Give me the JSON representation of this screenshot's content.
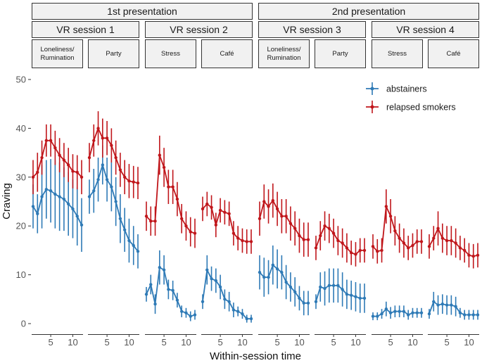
{
  "chart_data": {
    "type": "line",
    "ylabel": "Craving",
    "xlabel": "Within-session time",
    "ylim": [
      0,
      50
    ],
    "yticks": [
      0,
      10,
      20,
      30,
      40,
      50
    ],
    "xlim": [
      1,
      12
    ],
    "xticks": [
      5,
      10
    ],
    "legend": {
      "placement": "top-right",
      "entries": [
        {
          "name": "abstainers",
          "color": "#2e7ab6"
        },
        {
          "name": "relapsed smokers",
          "color": "#c0161b"
        }
      ]
    },
    "presentations": [
      {
        "label": "1st presentation",
        "sessions": [
          0,
          1
        ]
      },
      {
        "label": "2nd presentation",
        "sessions": [
          2,
          3
        ]
      }
    ],
    "sessions": [
      {
        "label": "VR session 1",
        "panels": [
          0,
          1
        ]
      },
      {
        "label": "VR session 2",
        "panels": [
          2,
          3
        ]
      },
      {
        "label": "VR session 3",
        "panels": [
          4,
          5
        ]
      },
      {
        "label": "VR session 4",
        "panels": [
          6,
          7
        ]
      }
    ],
    "panels": [
      {
        "label": "Loneliness/\nRumination",
        "series": [
          {
            "name": "abstainers",
            "x": [
              1,
              2,
              3,
              4,
              5,
              6,
              7,
              8,
              9,
              10,
              11,
              12
            ],
            "y": [
              24,
              22.5,
              26,
              27.5,
              27.2,
              26.5,
              26,
              25.5,
              24.5,
              23.5,
              22,
              20.2
            ],
            "err": [
              4.5,
              4,
              6.5,
              6,
              6.5,
              7,
              7,
              6.5,
              6.5,
              6,
              6,
              5.5
            ]
          },
          {
            "name": "relapsed smokers",
            "x": [
              1,
              2,
              3,
              4,
              5,
              6,
              7,
              8,
              9,
              10,
              11,
              12
            ],
            "y": [
              30,
              31,
              34,
              37.5,
              37.5,
              36,
              34.5,
              33.5,
              32.5,
              31.2,
              31,
              30
            ],
            "err": [
              3.5,
              4,
              3.5,
              3.3,
              3.3,
              3.5,
              3.5,
              3.5,
              3.5,
              3.5,
              3.5,
              3.5
            ]
          }
        ]
      },
      {
        "label": "Party",
        "series": [
          {
            "name": "abstainers",
            "x": [
              1,
              2,
              3,
              4,
              5,
              6,
              7,
              8,
              9,
              10,
              11,
              12
            ],
            "y": [
              26,
              27.2,
              29.5,
              32.5,
              29.5,
              28,
              25,
              21.5,
              19.2,
              17,
              16,
              14.8
            ],
            "err": [
              3.5,
              4.5,
              4.5,
              4,
              4.5,
              5,
              5,
              5,
              4.5,
              4.5,
              4,
              3.5
            ]
          },
          {
            "name": "relapsed smokers",
            "x": [
              1,
              2,
              3,
              4,
              5,
              6,
              7,
              8,
              9,
              10,
              11,
              12
            ],
            "y": [
              34,
              37.5,
              40,
              38,
              38,
              36.5,
              34,
              31.5,
              30,
              29.2,
              29,
              28.8
            ],
            "err": [
              3,
              3.3,
              3.5,
              4,
              3.5,
              3.5,
              3.5,
              3.5,
              3.5,
              3.5,
              3.3,
              3.3
            ]
          }
        ]
      },
      {
        "label": "Stress",
        "series": [
          {
            "name": "abstainers",
            "x": [
              1,
              2,
              3,
              4,
              5,
              6,
              7,
              8,
              9,
              10,
              11,
              12
            ],
            "y": [
              6,
              8,
              4,
              11.5,
              11,
              7,
              6.8,
              4.8,
              2.5,
              2.2,
              1.5,
              1.8
            ],
            "err": [
              1.5,
              2,
              2,
              3.5,
              3,
              2,
              2,
              1.5,
              1.2,
              1,
              1,
              1
            ]
          },
          {
            "name": "relapsed smokers",
            "x": [
              1,
              2,
              3,
              4,
              5,
              6,
              7,
              8,
              9,
              10,
              11,
              12
            ],
            "y": [
              22,
              21,
              21,
              34.5,
              32,
              28,
              28,
              25.5,
              21.5,
              20,
              18.8,
              18.5
            ],
            "err": [
              3,
              3,
              3,
              4,
              4,
              3.5,
              3.5,
              3.5,
              3,
              3,
              3,
              3
            ]
          }
        ]
      },
      {
        "label": "Café",
        "series": [
          {
            "name": "abstainers",
            "x": [
              1,
              2,
              3,
              4,
              5,
              6,
              7,
              8,
              9,
              10,
              11,
              12
            ],
            "y": [
              4.5,
              11,
              9.2,
              8.8,
              7.5,
              5,
              4.5,
              2.8,
              2.5,
              2,
              1,
              1
            ],
            "err": [
              1.5,
              3,
              2.5,
              2.5,
              2.5,
              2,
              2,
              1.5,
              1,
              1,
              0.8,
              0.8
            ]
          },
          {
            "name": "relapsed smokers",
            "x": [
              1,
              2,
              3,
              4,
              5,
              6,
              7,
              8,
              9,
              10,
              11,
              12
            ],
            "y": [
              23.5,
              24.5,
              23.8,
              20.2,
              23.2,
              22.8,
              22.5,
              18.5,
              17.5,
              17,
              16.8,
              16.8
            ],
            "err": [
              2.5,
              2.5,
              2.5,
              2.5,
              2.5,
              2.5,
              2.5,
              2.5,
              2.5,
              2.5,
              2.5,
              2.5
            ]
          }
        ]
      },
      {
        "label": "Loneliness/\nRumination",
        "series": [
          {
            "name": "abstainers",
            "x": [
              1,
              2,
              3,
              4,
              5,
              6,
              7,
              8,
              9,
              10,
              11,
              12
            ],
            "y": [
              10.5,
              9.5,
              9.5,
              12,
              11.2,
              10.5,
              8.5,
              7.5,
              6.5,
              5.2,
              4.2,
              4.2
            ],
            "err": [
              3.5,
              4,
              3.5,
              4,
              4,
              3.5,
              3.5,
              3,
              3,
              2.5,
              2.5,
              2.5
            ]
          },
          {
            "name": "relapsed smokers",
            "x": [
              1,
              2,
              3,
              4,
              5,
              6,
              7,
              8,
              9,
              10,
              11,
              12
            ],
            "y": [
              21.5,
              25,
              24,
              25.2,
              23.5,
              22,
              22,
              20.5,
              19.5,
              18,
              17.2,
              17.2
            ],
            "err": [
              3.5,
              3.5,
              3.5,
              3.5,
              3.5,
              3.5,
              3.5,
              3.5,
              3.5,
              3.5,
              3.5,
              3.5
            ]
          }
        ]
      },
      {
        "label": "Party",
        "series": [
          {
            "name": "abstainers",
            "x": [
              1,
              2,
              3,
              4,
              5,
              6,
              7,
              8,
              9,
              10,
              11,
              12
            ],
            "y": [
              4.5,
              7.5,
              7.2,
              7.8,
              7.8,
              7.8,
              7,
              6,
              5.8,
              5.5,
              5.2,
              5.2
            ],
            "err": [
              1.5,
              3,
              3.5,
              3.5,
              3.5,
              3.5,
              3.5,
              3,
              3,
              3,
              3,
              3
            ]
          },
          {
            "name": "relapsed smokers",
            "x": [
              1,
              2,
              3,
              4,
              5,
              6,
              7,
              8,
              9,
              10,
              11,
              12
            ],
            "y": [
              15.5,
              18,
              20,
              19.5,
              18.5,
              17,
              16.5,
              15.5,
              14.5,
              14.2,
              15,
              15
            ],
            "err": [
              2.5,
              3,
              3,
              3,
              3,
              3,
              3,
              3,
              2.5,
              2.5,
              2.5,
              2.5
            ]
          }
        ]
      },
      {
        "label": "Stress",
        "series": [
          {
            "name": "abstainers",
            "x": [
              1,
              2,
              3,
              4,
              5,
              6,
              7,
              8,
              9,
              10,
              11,
              12
            ],
            "y": [
              1.5,
              1.5,
              2,
              3,
              2.2,
              2.5,
              2.5,
              2.5,
              1.8,
              2.2,
              2.2,
              2.2
            ],
            "err": [
              0.8,
              0.8,
              1,
              1.5,
              1.2,
              1.2,
              1.2,
              1.2,
              1,
              1,
              1,
              1
            ]
          },
          {
            "name": "relapsed smokers",
            "x": [
              1,
              2,
              3,
              4,
              5,
              6,
              7,
              8,
              9,
              10,
              11,
              12
            ],
            "y": [
              15.8,
              14.8,
              15,
              24,
              22,
              19,
              17.5,
              16.5,
              15.5,
              16,
              16.8,
              16.8
            ],
            "err": [
              2.5,
              2.5,
              2.5,
              3.5,
              3.5,
              3,
              3,
              3,
              2.5,
              2.5,
              2.5,
              2.5
            ]
          }
        ]
      },
      {
        "label": "Café",
        "series": [
          {
            "name": "abstainers",
            "x": [
              1,
              2,
              3,
              4,
              5,
              6,
              7,
              8,
              9,
              10,
              11,
              12
            ],
            "y": [
              2,
              4.5,
              3.8,
              4,
              3.8,
              3.8,
              3.5,
              2.2,
              1.8,
              1.8,
              1.8,
              1.8
            ],
            "err": [
              1,
              2,
              2,
              2,
              2,
              2,
              2,
              1,
              1,
              1,
              1,
              1
            ]
          },
          {
            "name": "relapsed smokers",
            "x": [
              1,
              2,
              3,
              4,
              5,
              6,
              7,
              8,
              9,
              10,
              11,
              12
            ],
            "y": [
              15.8,
              17.5,
              19.5,
              17.5,
              17,
              17,
              16.5,
              15.5,
              15,
              14,
              13.8,
              14
            ],
            "err": [
              2.5,
              2.5,
              3.5,
              3,
              3,
              3,
              3,
              2.5,
              2.5,
              2.5,
              2.5,
              2.5
            ]
          }
        ]
      }
    ]
  }
}
